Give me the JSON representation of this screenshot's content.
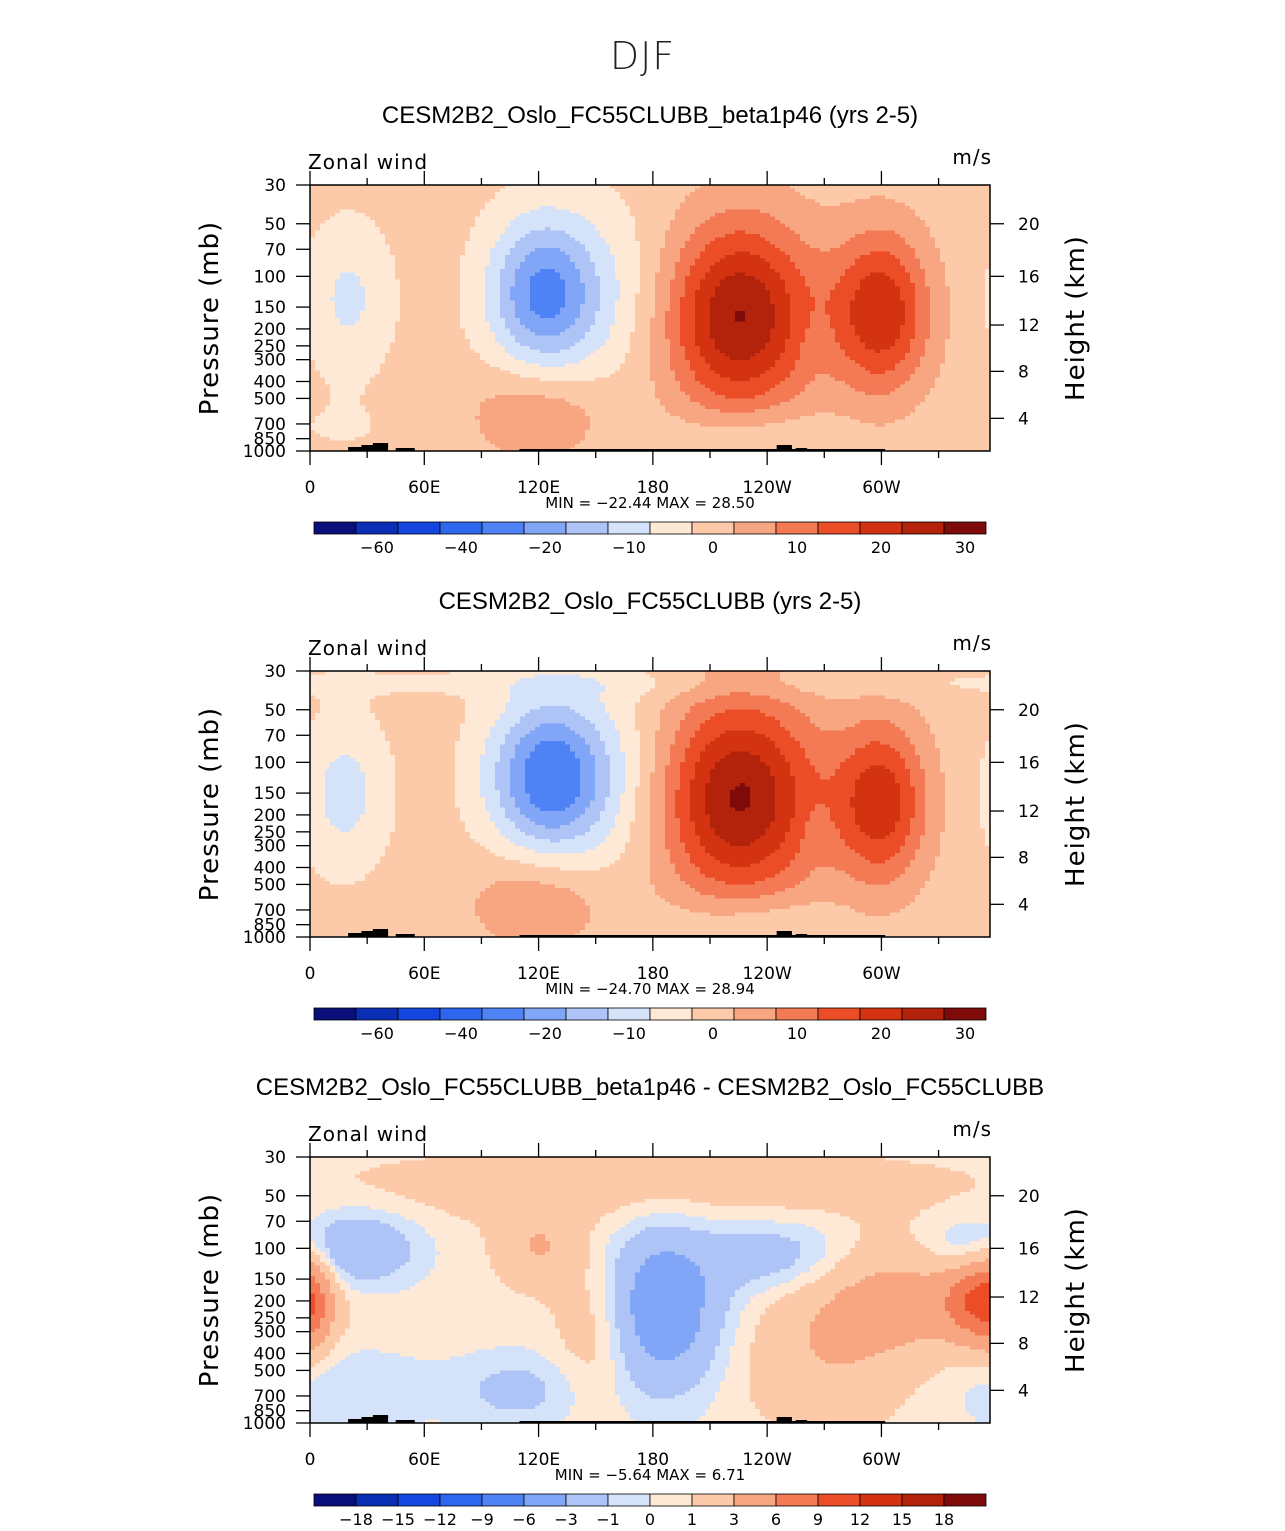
{
  "main_title": "DJF",
  "colors": {
    "palette": [
      "#0a0f7a",
      "#0a2fb5",
      "#1547e0",
      "#2f66ee",
      "#4f82f4",
      "#82a6f7",
      "#aec3f6",
      "#d4e3fa",
      "#fde9d6",
      "#fcc9a9",
      "#f8a582",
      "#f37a55",
      "#eb4e26",
      "#d43312",
      "#b3220b",
      "#7f0a0a"
    ],
    "terrain": "#000000",
    "frame": "#000000"
  },
  "chart_data": [
    {
      "type": "heatmap",
      "title": "CESM2B2_Oslo_FC55CLUBB_beta1p46 (yrs 2-5)",
      "subtitle_left": "Zonal wind",
      "subtitle_right": "m/s",
      "xlabel": "",
      "ylabel": "Pressure (mb)",
      "ylabel_right": "Height (km)",
      "x_ticks": [
        "0",
        "60E",
        "120E",
        "180",
        "120W",
        "60W"
      ],
      "y_ticks": [
        "30",
        "50",
        "70",
        "100",
        "150",
        "200",
        "250",
        "300",
        "400",
        "500",
        "700",
        "850",
        "1000"
      ],
      "y2_ticks": [
        "20",
        "16",
        "12",
        "8",
        "4"
      ],
      "stats": "MIN = −22.44   MAX =   28.50",
      "colorbar_labels": [
        "−60",
        "−40",
        "−20",
        "−10",
        "0",
        "10",
        "20",
        "30"
      ],
      "features": [
        {
          "lon": 20,
          "p": 135,
          "value": -8,
          "wx": 16,
          "wy": 0.7
        },
        {
          "lon": 122,
          "p": 125,
          "value": -22,
          "wx": 20,
          "wy": 0.7
        },
        {
          "lon": 160,
          "p": 130,
          "value": -6,
          "wx": 28,
          "wy": 0.9
        },
        {
          "lon": 120,
          "p": 600,
          "value": 8,
          "wx": 25,
          "wy": 0.45
        },
        {
          "lon": 225,
          "p": 170,
          "value": 28.5,
          "wx": 28,
          "wy": 0.9
        },
        {
          "lon": 300,
          "p": 160,
          "value": 22,
          "wx": 18,
          "wy": 0.75
        },
        {
          "lon": 265,
          "p": 240,
          "value": -2,
          "wx": 6,
          "wy": 0.3
        },
        {
          "lon": 230,
          "p": 800,
          "value": -5,
          "wx": 28,
          "wy": 0.25
        },
        {
          "lon": 15,
          "p": 750,
          "value": -2,
          "wx": 30,
          "wy": 0.3
        }
      ]
    },
    {
      "type": "heatmap",
      "title": "CESM2B2_Oslo_FC55CLUBB (yrs 2-5)",
      "subtitle_left": "Zonal wind",
      "subtitle_right": "m/s",
      "xlabel": "",
      "ylabel": "Pressure (mb)",
      "ylabel_right": "Height (km)",
      "x_ticks": [
        "0",
        "60E",
        "120E",
        "180",
        "120W",
        "60W"
      ],
      "y_ticks": [
        "30",
        "50",
        "70",
        "100",
        "150",
        "200",
        "250",
        "300",
        "400",
        "500",
        "700",
        "850",
        "1000"
      ],
      "y2_ticks": [
        "20",
        "16",
        "12",
        "8",
        "4"
      ],
      "stats": "MIN = −24.70   MAX =   28.94",
      "colorbar_labels": [
        "−60",
        "−40",
        "−20",
        "−10",
        "0",
        "10",
        "20",
        "30"
      ],
      "features": [
        {
          "lon": 18,
          "p": 150,
          "value": -9,
          "wx": 16,
          "wy": 0.7
        },
        {
          "lon": 125,
          "p": 120,
          "value": -24.7,
          "wx": 22,
          "wy": 0.7
        },
        {
          "lon": 160,
          "p": 130,
          "value": -6,
          "wx": 28,
          "wy": 0.9
        },
        {
          "lon": 120,
          "p": 620,
          "value": 8,
          "wx": 25,
          "wy": 0.45
        },
        {
          "lon": 225,
          "p": 160,
          "value": 28.9,
          "wx": 30,
          "wy": 0.95
        },
        {
          "lon": 300,
          "p": 170,
          "value": 21,
          "wx": 17,
          "wy": 0.75
        },
        {
          "lon": 265,
          "p": 240,
          "value": -2,
          "wx": 6,
          "wy": 0.3
        },
        {
          "lon": 230,
          "p": 780,
          "value": -5,
          "wx": 28,
          "wy": 0.25
        },
        {
          "lon": 180,
          "p": 35,
          "value": -3,
          "wx": 200,
          "wy": 0.15
        }
      ]
    },
    {
      "type": "heatmap",
      "title": "CESM2B2_Oslo_FC55CLUBB_beta1p46 - CESM2B2_Oslo_FC55CLUBB",
      "subtitle_left": "Zonal wind",
      "subtitle_right": "m/s",
      "xlabel": "",
      "ylabel": "Pressure (mb)",
      "ylabel_right": "Height (km)",
      "x_ticks": [
        "0",
        "60E",
        "120E",
        "180",
        "120W",
        "60W"
      ],
      "y_ticks": [
        "30",
        "50",
        "70",
        "100",
        "150",
        "200",
        "250",
        "300",
        "400",
        "500",
        "700",
        "850",
        "1000"
      ],
      "y2_ticks": [
        "20",
        "16",
        "12",
        "8",
        "4"
      ],
      "stats": "MIN =    −5.64   MAX =    6.71",
      "colorbar_labels": [
        "−18",
        "−15",
        "−12",
        "−9",
        "−6",
        "−3",
        "−1",
        "0",
        "1",
        "3",
        "6",
        "9",
        "12",
        "15",
        "18"
      ],
      "features": [
        {
          "lon": 185,
          "p": 220,
          "value": -5.6,
          "wx": 22,
          "wy": 0.75
        },
        {
          "lon": 25,
          "p": 100,
          "value": -3.5,
          "wx": 22,
          "wy": 0.35
        },
        {
          "lon": 245,
          "p": 110,
          "value": -2.5,
          "wx": 25,
          "wy": 0.35
        },
        {
          "lon": 340,
          "p": 100,
          "value": -1.5,
          "wx": 15,
          "wy": 0.3
        },
        {
          "lon": 350,
          "p": 200,
          "value": 6.7,
          "wx": 12,
          "wy": 0.35
        },
        {
          "lon": 310,
          "p": 200,
          "value": 3.5,
          "wx": 35,
          "wy": 0.5
        },
        {
          "lon": 0,
          "p": 200,
          "value": 4,
          "wx": 8,
          "wy": 0.5
        },
        {
          "lon": 120,
          "p": 100,
          "value": 2.5,
          "wx": 15,
          "wy": 0.35
        },
        {
          "lon": 110,
          "p": 650,
          "value": -2,
          "wx": 25,
          "wy": 0.35
        },
        {
          "lon": 20,
          "p": 650,
          "value": -1.5,
          "wx": 30,
          "wy": 0.4
        },
        {
          "lon": 150,
          "p": 300,
          "value": 2,
          "wx": 15,
          "wy": 0.7
        },
        {
          "lon": 270,
          "p": 450,
          "value": 2,
          "wx": 30,
          "wy": 0.6
        },
        {
          "lon": 180,
          "p": 45,
          "value": 1.5,
          "wx": 120,
          "wy": 0.35
        }
      ]
    }
  ]
}
